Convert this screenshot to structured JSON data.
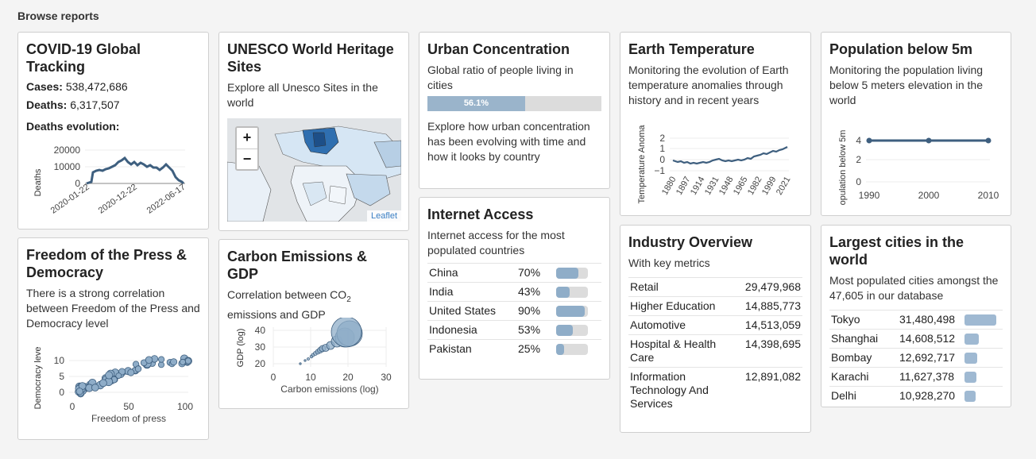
{
  "page": {
    "title": "Browse reports"
  },
  "covid": {
    "title": "COVID-19 Global Tracking",
    "cases_label": "Cases:",
    "cases_value": "538,472,686",
    "deaths_label": "Deaths:",
    "deaths_value": "6,317,507",
    "evolution_label": "Deaths evolution:",
    "chart": {
      "ylabel": "Deaths",
      "yticks": [
        "20000",
        "10000",
        "0"
      ],
      "xticks": [
        "2020-01-22",
        "2020-12-22",
        "2022-06-17"
      ]
    }
  },
  "unesco": {
    "title": "UNESCO World Heritage Sites",
    "desc": "Explore all Unesco Sites in the world",
    "zoom_in": "+",
    "zoom_out": "−",
    "attribution": "Leaflet"
  },
  "urban": {
    "title": "Urban Concentration",
    "desc1": "Global ratio of people living in cities",
    "progress_value": 0.561,
    "progress_label": "56.1%",
    "desc2": "Explore how urban concentration has been evolving with time and how it looks by country"
  },
  "internet": {
    "title": "Internet Access",
    "desc": "Internet access for the most populated countries",
    "rows": [
      {
        "country": "China",
        "pct": "70%",
        "value": 0.7
      },
      {
        "country": "India",
        "pct": "43%",
        "value": 0.43
      },
      {
        "country": "United States",
        "pct": "90%",
        "value": 0.9
      },
      {
        "country": "Indonesia",
        "pct": "53%",
        "value": 0.53
      },
      {
        "country": "Pakistan",
        "pct": "25%",
        "value": 0.25
      }
    ]
  },
  "earth": {
    "title": "Earth Temperature",
    "desc": "Monitoring the evolution of Earth temperature anomalies through history and in recent years",
    "chart": {
      "ylabel": "Temperature Anoma",
      "yticks": [
        "2",
        "1",
        "0",
        "−1"
      ],
      "xticks": [
        "1880",
        "1897",
        "1914",
        "1931",
        "1948",
        "1965",
        "1982",
        "1999",
        "2021"
      ]
    }
  },
  "population5m": {
    "title": "Population below 5m",
    "desc": "Monitoring the population living below 5 meters elevation in the world",
    "chart": {
      "ylabel": "opulation below 5m",
      "yticks": [
        "4",
        "2",
        "0"
      ],
      "xticks": [
        "1990",
        "2000",
        "2010"
      ]
    }
  },
  "industry": {
    "title": "Industry Overview",
    "desc": "With key metrics",
    "rows": [
      {
        "name": "Retail",
        "value": "29,479,968"
      },
      {
        "name": "Higher Education",
        "value": "14,885,773"
      },
      {
        "name": "Automotive",
        "value": "14,513,059"
      },
      {
        "name": "Hospital & Health Care",
        "value": "14,398,695"
      },
      {
        "name": "Information Technology And Services",
        "value": "12,891,082"
      }
    ]
  },
  "cities": {
    "title": "Largest cities in the world",
    "desc": "Most populated cities amongst the 47,605 in our database",
    "rows": [
      {
        "city": "Tokyo",
        "value": "31,480,498",
        "share": 1.0
      },
      {
        "city": "Shanghai",
        "value": "14,608,512",
        "share": 0.46
      },
      {
        "city": "Bombay",
        "value": "12,692,717",
        "share": 0.4
      },
      {
        "city": "Karachi",
        "value": "11,627,378",
        "share": 0.37
      },
      {
        "city": "Delhi",
        "value": "10,928,270",
        "share": 0.35
      }
    ]
  },
  "press": {
    "title": "Freedom of the Press & Democracy",
    "desc": "There is a strong correlation between Freedom of the Press and Democracy level",
    "chart": {
      "xlabel": "Freedom of press",
      "ylabel": "Democracy leve",
      "xticks": [
        "0",
        "50",
        "100"
      ],
      "yticks": [
        "10",
        "5",
        "0"
      ]
    }
  },
  "carbon": {
    "title": "Carbon Emissions & GDP",
    "desc_pre": "Correlation between CO",
    "desc_sub": "2",
    "desc_post": " emissions and GDP",
    "chart": {
      "xlabel": "Carbon emissions (log)",
      "ylabel": "GDP (log)",
      "xticks": [
        "0",
        "10",
        "20",
        "30"
      ],
      "yticks": [
        "40",
        "30",
        "20"
      ]
    }
  }
}
